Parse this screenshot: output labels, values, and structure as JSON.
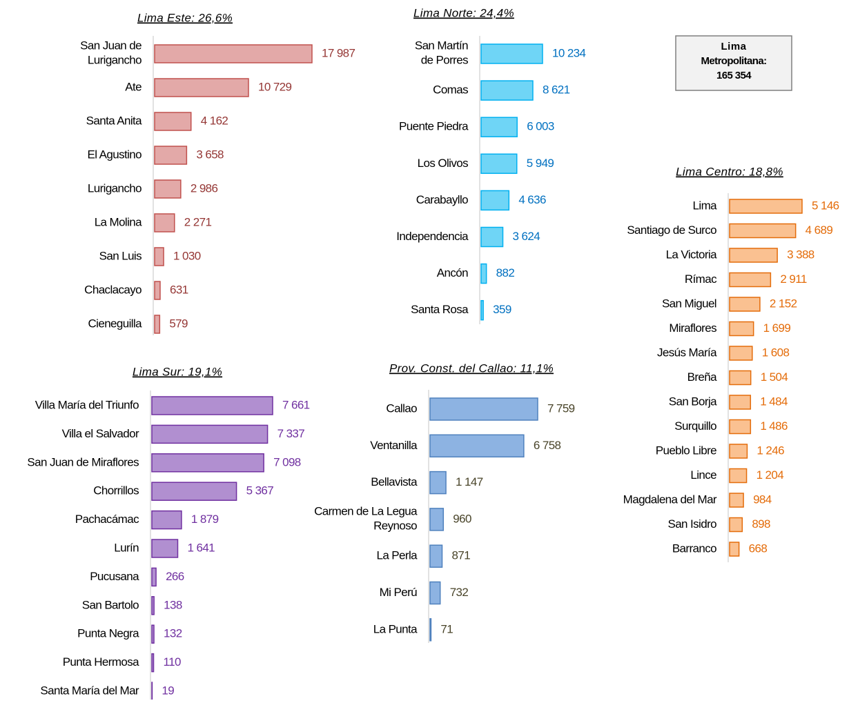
{
  "chart_data": [
    {
      "type": "bar",
      "title": "Lima Este: 26,6%",
      "color": "#e3a9a8",
      "edge_color": "#c0504d",
      "label_color": "#953735",
      "categories": [
        "San Juan de\nLurigancho",
        "Ate",
        "Santa Anita",
        "El Agustino",
        "Lurigancho",
        "La Molina",
        "San Luis",
        "Chaclacayo",
        "Cieneguilla"
      ],
      "values": [
        17987,
        10729,
        4162,
        3658,
        2986,
        2271,
        1030,
        631,
        579
      ],
      "value_labels": [
        "17 987",
        "10 729",
        "4 162",
        "3 658",
        "2 986",
        "2 271",
        "1 030",
        "631",
        "579"
      ]
    },
    {
      "type": "bar",
      "title": "Lima Norte: 24,4%",
      "color": "#6fd5f6",
      "edge_color": "#00b0f0",
      "label_color": "#0070c0",
      "categories": [
        "San Martín\nde Porres",
        "Comas",
        "Puente Piedra",
        "Los Olivos",
        "Carabayllo",
        "Independencia",
        "Ancón",
        "Santa Rosa"
      ],
      "values": [
        10234,
        8621,
        6003,
        5949,
        4636,
        3624,
        882,
        359
      ],
      "value_labels": [
        "10 234",
        "8 621",
        "6 003",
        "5 949",
        "4 636",
        "3 624",
        "882",
        "359"
      ]
    },
    {
      "type": "bar",
      "title": "Lima Centro: 18,8%",
      "color": "#fac191",
      "edge_color": "#e46c0a",
      "label_color": "#e46c0a",
      "categories": [
        "Lima",
        "Santiago de Surco",
        "La Victoria",
        "Rímac",
        "San Miguel",
        "Miraflores",
        "Jesús María",
        "Breña",
        "San Borja",
        "Surquillo",
        "Pueblo Libre",
        "Lince",
        "Magdalena del Mar",
        "San Isidro",
        "Barranco"
      ],
      "values": [
        5146,
        4689,
        3388,
        2911,
        2152,
        1699,
        1608,
        1504,
        1484,
        1486,
        1246,
        1204,
        984,
        898,
        668
      ],
      "value_labels": [
        "5 146",
        "4 689",
        "3 388",
        "2 911",
        "2 152",
        "1 699",
        "1 608",
        "1 504",
        "1 484",
        "1 486",
        "1 246",
        "1 204",
        "984",
        "898",
        "668"
      ]
    },
    {
      "type": "bar",
      "title": "Lima Sur: 19,1%",
      "color": "#b18fd0",
      "edge_color": "#7030a0",
      "label_color": "#7030a0",
      "categories": [
        "Villa María del Triunfo",
        "Villa el Salvador",
        "San Juan de Miraflores",
        "Chorrillos",
        "Pachacámac",
        "Lurín",
        "Pucusana",
        "San Bartolo",
        "Punta Negra",
        "Punta Hermosa",
        "Santa María del Mar"
      ],
      "values": [
        7661,
        7337,
        7098,
        5367,
        1879,
        1641,
        266,
        138,
        132,
        110,
        19
      ],
      "value_labels": [
        "7 661",
        "7 337",
        "7 098",
        "5 367",
        "1 879",
        "1 641",
        "266",
        "138",
        "132",
        "110",
        "19"
      ]
    },
    {
      "type": "bar",
      "title": "Prov.  Const. del Callao: 11,1%",
      "color": "#8db3e2",
      "edge_color": "#4f81bd",
      "label_color": "#494429",
      "categories": [
        "Callao",
        "Ventanilla",
        "Bellavista",
        "Carmen de La Legua\nReynoso",
        "La Perla",
        "Mi Perú",
        "La Punta"
      ],
      "values": [
        7759,
        6758,
        1147,
        960,
        871,
        732,
        71
      ],
      "value_labels": [
        "7 759",
        "6 758",
        "1 147",
        "960",
        "871",
        "732",
        "71"
      ]
    }
  ],
  "annotation": [
    "Lima",
    "Metropolitana:",
    "165 354"
  ]
}
